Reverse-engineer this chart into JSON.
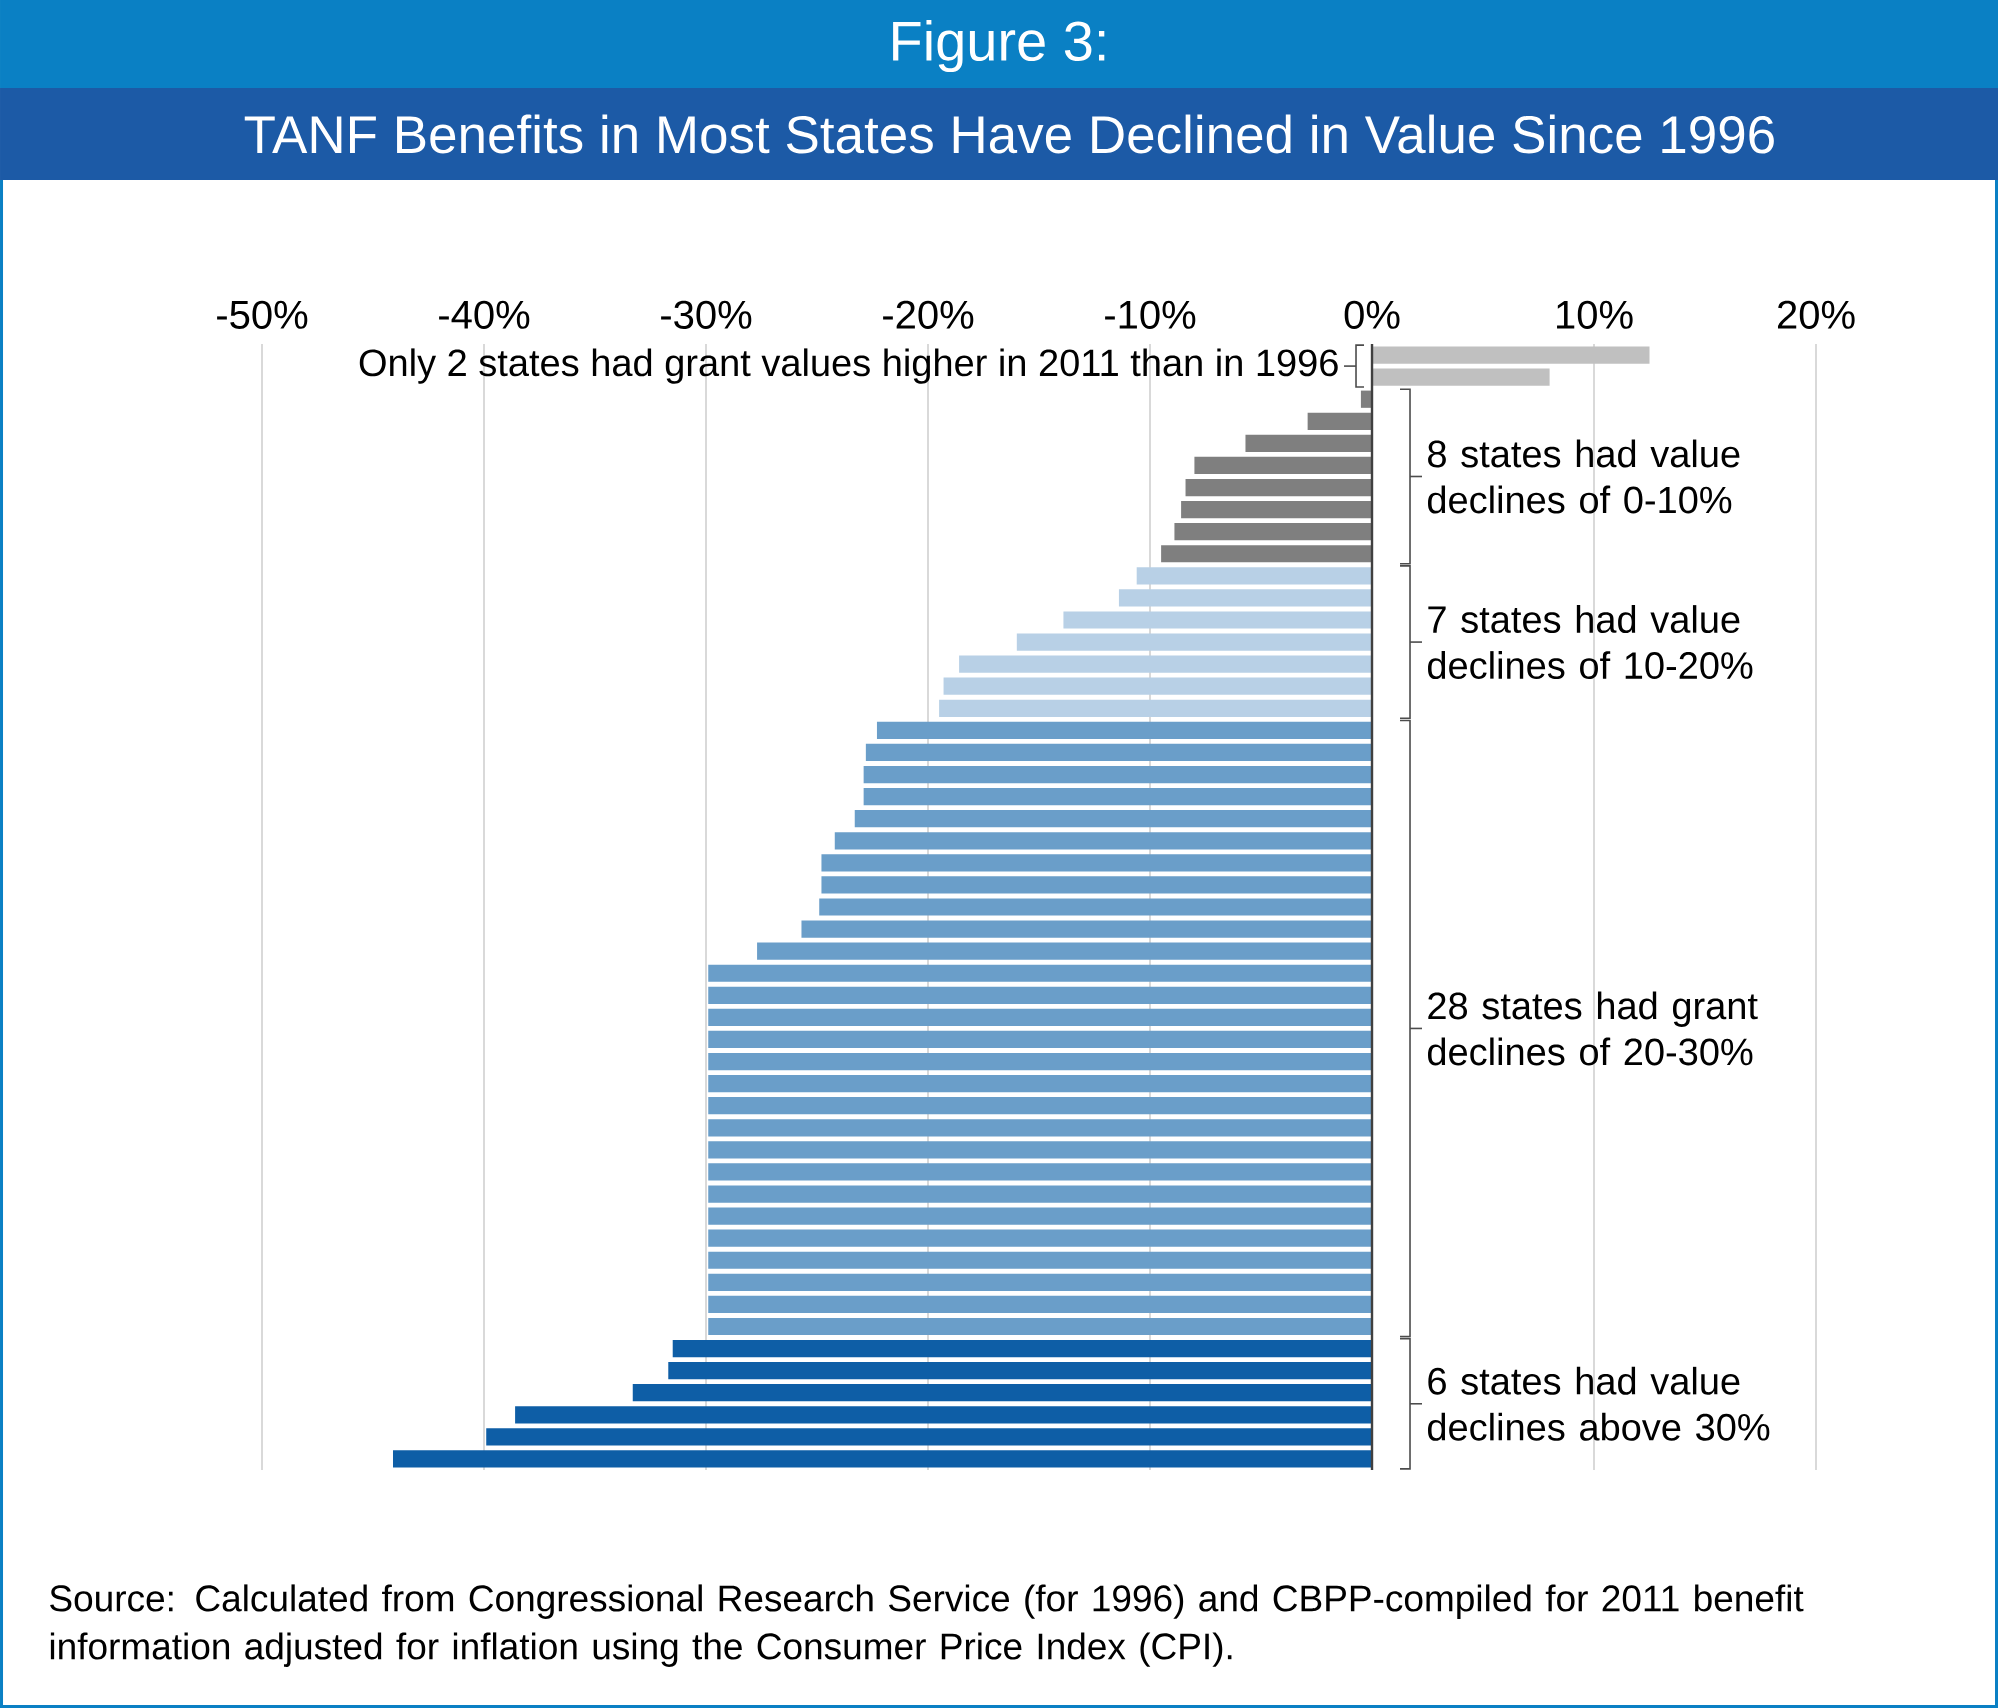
{
  "chart_data": {
    "type": "bar",
    "orientation": "horizontal",
    "title": "Figure 3:",
    "subtitle": "TANF Benefits in Most States Have Declined in Value  Since 1996",
    "categories": [
      null,
      null,
      null,
      null,
      null,
      null,
      null,
      null,
      null,
      null,
      null,
      null,
      null,
      null,
      null,
      null,
      null,
      null,
      null,
      null,
      null,
      null,
      null,
      null,
      null,
      null,
      null,
      null,
      null,
      null,
      null,
      null,
      null,
      null,
      null,
      null,
      null,
      null,
      null,
      null,
      null,
      null,
      null,
      null,
      null,
      null,
      null,
      null,
      null,
      null,
      null
    ],
    "values": [
      12.5,
      8.0,
      -0.5,
      -2.9,
      -5.7,
      -8.0,
      -8.4,
      -8.6,
      -8.9,
      -9.5,
      -10.6,
      -11.4,
      -13.9,
      -16.0,
      -18.6,
      -19.3,
      -19.5,
      -22.3,
      -22.8,
      -22.9,
      -22.9,
      -23.3,
      -24.2,
      -24.8,
      -24.8,
      -24.9,
      -25.7,
      -27.7,
      -29.9,
      -29.9,
      -29.9,
      -29.9,
      -29.9,
      -29.9,
      -29.9,
      -29.9,
      -29.9,
      -29.9,
      -29.9,
      -29.9,
      -29.9,
      -29.9,
      -29.9,
      -29.9,
      -29.9,
      -31.5,
      -31.7,
      -33.3,
      -38.6,
      -39.9,
      -44.1
    ],
    "colors": [
      "#c0c0c0",
      "#c0c0c0",
      "#7f7f7f",
      "#7f7f7f",
      "#7f7f7f",
      "#7f7f7f",
      "#7f7f7f",
      "#7f7f7f",
      "#7f7f7f",
      "#7f7f7f",
      "#b8d0e6",
      "#b8d0e6",
      "#b8d0e6",
      "#b8d0e6",
      "#b8d0e6",
      "#b8d0e6",
      "#b8d0e6",
      "#6a9ec9",
      "#6a9ec9",
      "#6a9ec9",
      "#6a9ec9",
      "#6a9ec9",
      "#6a9ec9",
      "#6a9ec9",
      "#6a9ec9",
      "#6a9ec9",
      "#6a9ec9",
      "#6a9ec9",
      "#6a9ec9",
      "#6a9ec9",
      "#6a9ec9",
      "#6a9ec9",
      "#6a9ec9",
      "#6a9ec9",
      "#6a9ec9",
      "#6a9ec9",
      "#6a9ec9",
      "#6a9ec9",
      "#6a9ec9",
      "#6a9ec9",
      "#6a9ec9",
      "#6a9ec9",
      "#6a9ec9",
      "#6a9ec9",
      "#6a9ec9",
      "#0e5ea6",
      "#0e5ea6",
      "#0e5ea6",
      "#0e5ea6",
      "#0e5ea6",
      "#0e5ea6"
    ],
    "xlim": [
      -50,
      20
    ],
    "xticks": [
      {
        "value": -50,
        "label": "-50%"
      },
      {
        "value": -40,
        "label": "-40%"
      },
      {
        "value": -30,
        "label": "-30%"
      },
      {
        "value": -20,
        "label": "-20%"
      },
      {
        "value": -10,
        "label": "-10%"
      },
      {
        "value": 0,
        "label": "0%"
      },
      {
        "value": 10,
        "label": "10%"
      },
      {
        "value": 20,
        "label": "20%"
      }
    ],
    "grid": "x",
    "tick_labels": "x",
    "ref_lines": [
      {
        "axis": "x",
        "value": 0,
        "color": "#404040"
      }
    ],
    "annotations": [
      "Only 2 states had grant values higher in 2011 than in 1996",
      "8 states had value declines of 0-10%",
      "7 states had value declines of 10-20%",
      "28 states had grant declines of 20-30%",
      "6 states had value declines above 30%",
      "Source: Calculated from Congressional Research Service (for 1996) and CBPP-compiled for 2011 benefit information adjusted for inflation using the Consumer Price Index (CPI)."
    ]
  }
}
